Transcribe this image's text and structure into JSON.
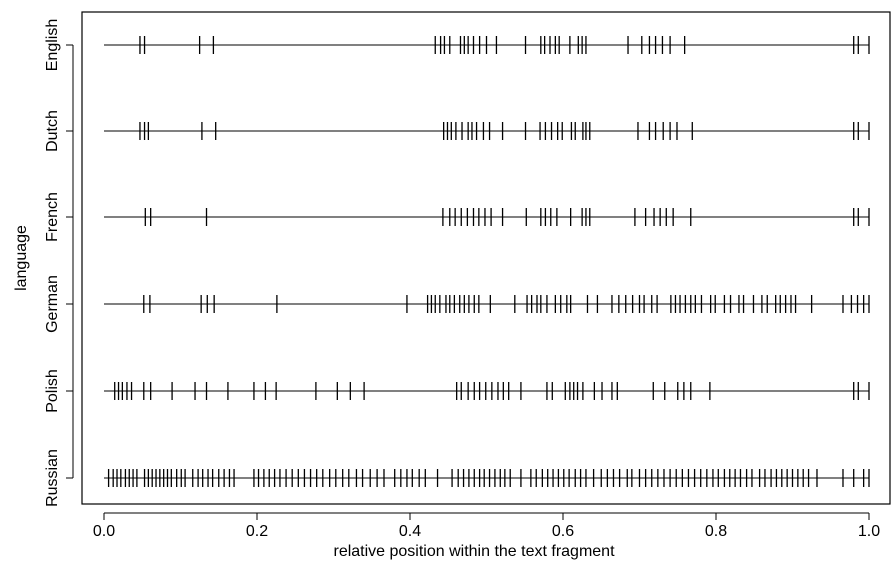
{
  "chart_data": {
    "type": "strip",
    "xlabel": "relative position within the text fragment",
    "ylabel": "language",
    "xlim": [
      0,
      1
    ],
    "x_ticks": [
      0.0,
      0.2,
      0.4,
      0.6,
      0.8,
      1.0
    ],
    "x_tick_labels": [
      "0.0",
      "0.2",
      "0.4",
      "0.6",
      "0.8",
      "1.0"
    ],
    "grid": false,
    "categories": [
      "English",
      "Dutch",
      "French",
      "German",
      "Polish",
      "Russian"
    ],
    "series": [
      {
        "name": "English",
        "positions": [
          0.047,
          0.053,
          0.125,
          0.143,
          0.433,
          0.44,
          0.445,
          0.452,
          0.466,
          0.471,
          0.476,
          0.483,
          0.491,
          0.5,
          0.513,
          0.551,
          0.571,
          0.576,
          0.583,
          0.59,
          0.595,
          0.609,
          0.62,
          0.625,
          0.63,
          0.685,
          0.703,
          0.713,
          0.721,
          0.73,
          0.74,
          0.759,
          0.98,
          0.986,
          1.0
        ]
      },
      {
        "name": "Dutch",
        "positions": [
          0.047,
          0.053,
          0.058,
          0.128,
          0.146,
          0.444,
          0.449,
          0.454,
          0.46,
          0.468,
          0.476,
          0.481,
          0.487,
          0.496,
          0.504,
          0.521,
          0.551,
          0.57,
          0.577,
          0.585,
          0.593,
          0.599,
          0.611,
          0.616,
          0.626,
          0.63,
          0.635,
          0.698,
          0.713,
          0.721,
          0.731,
          0.74,
          0.749,
          0.769,
          0.98,
          0.986,
          1.0
        ]
      },
      {
        "name": "French",
        "positions": [
          0.054,
          0.061,
          0.134,
          0.443,
          0.452,
          0.459,
          0.467,
          0.475,
          0.483,
          0.49,
          0.498,
          0.506,
          0.521,
          0.552,
          0.571,
          0.577,
          0.584,
          0.592,
          0.61,
          0.625,
          0.63,
          0.635,
          0.694,
          0.708,
          0.719,
          0.727,
          0.735,
          0.744,
          0.767,
          0.98,
          0.986,
          1.0
        ]
      },
      {
        "name": "German",
        "positions": [
          0.052,
          0.06,
          0.127,
          0.135,
          0.144,
          0.226,
          0.396,
          0.423,
          0.428,
          0.433,
          0.439,
          0.447,
          0.452,
          0.458,
          0.465,
          0.471,
          0.477,
          0.484,
          0.49,
          0.505,
          0.537,
          0.553,
          0.559,
          0.566,
          0.571,
          0.579,
          0.59,
          0.597,
          0.605,
          0.61,
          0.632,
          0.645,
          0.664,
          0.673,
          0.682,
          0.691,
          0.7,
          0.706,
          0.716,
          0.723,
          0.741,
          0.747,
          0.753,
          0.76,
          0.767,
          0.773,
          0.781,
          0.793,
          0.799,
          0.811,
          0.819,
          0.83,
          0.836,
          0.849,
          0.86,
          0.867,
          0.878,
          0.884,
          0.891,
          0.898,
          0.904,
          0.925,
          0.966,
          0.977,
          0.985,
          0.993,
          1.0
        ]
      },
      {
        "name": "Polish",
        "positions": [
          0.014,
          0.019,
          0.024,
          0.03,
          0.036,
          0.052,
          0.061,
          0.089,
          0.119,
          0.134,
          0.162,
          0.196,
          0.211,
          0.225,
          0.277,
          0.305,
          0.322,
          0.34,
          0.461,
          0.467,
          0.476,
          0.484,
          0.491,
          0.499,
          0.507,
          0.515,
          0.522,
          0.529,
          0.545,
          0.579,
          0.586,
          0.603,
          0.609,
          0.614,
          0.619,
          0.626,
          0.641,
          0.651,
          0.664,
          0.671,
          0.718,
          0.733,
          0.75,
          0.758,
          0.767,
          0.792,
          0.98,
          0.986,
          1.0
        ]
      },
      {
        "name": "Russian",
        "positions": [
          0.006,
          0.012,
          0.017,
          0.022,
          0.028,
          0.033,
          0.038,
          0.043,
          0.053,
          0.058,
          0.063,
          0.068,
          0.073,
          0.078,
          0.083,
          0.088,
          0.095,
          0.101,
          0.106,
          0.116,
          0.123,
          0.129,
          0.136,
          0.142,
          0.15,
          0.157,
          0.164,
          0.17,
          0.196,
          0.202,
          0.209,
          0.216,
          0.223,
          0.23,
          0.238,
          0.246,
          0.254,
          0.262,
          0.27,
          0.278,
          0.286,
          0.295,
          0.303,
          0.312,
          0.32,
          0.33,
          0.338,
          0.348,
          0.357,
          0.366,
          0.38,
          0.388,
          0.396,
          0.403,
          0.412,
          0.42,
          0.436,
          0.455,
          0.463,
          0.47,
          0.477,
          0.484,
          0.491,
          0.497,
          0.504,
          0.511,
          0.518,
          0.524,
          0.531,
          0.545,
          0.558,
          0.565,
          0.573,
          0.58,
          0.587,
          0.594,
          0.601,
          0.608,
          0.616,
          0.623,
          0.63,
          0.64,
          0.65,
          0.658,
          0.666,
          0.674,
          0.684,
          0.69,
          0.7,
          0.708,
          0.716,
          0.724,
          0.732,
          0.74,
          0.748,
          0.756,
          0.764,
          0.772,
          0.78,
          0.788,
          0.796,
          0.803,
          0.811,
          0.818,
          0.825,
          0.832,
          0.84,
          0.847,
          0.857,
          0.864,
          0.872,
          0.879,
          0.886,
          0.893,
          0.9,
          0.907,
          0.914,
          0.921,
          0.932,
          0.966,
          0.98,
          0.993,
          1.0
        ]
      }
    ]
  }
}
